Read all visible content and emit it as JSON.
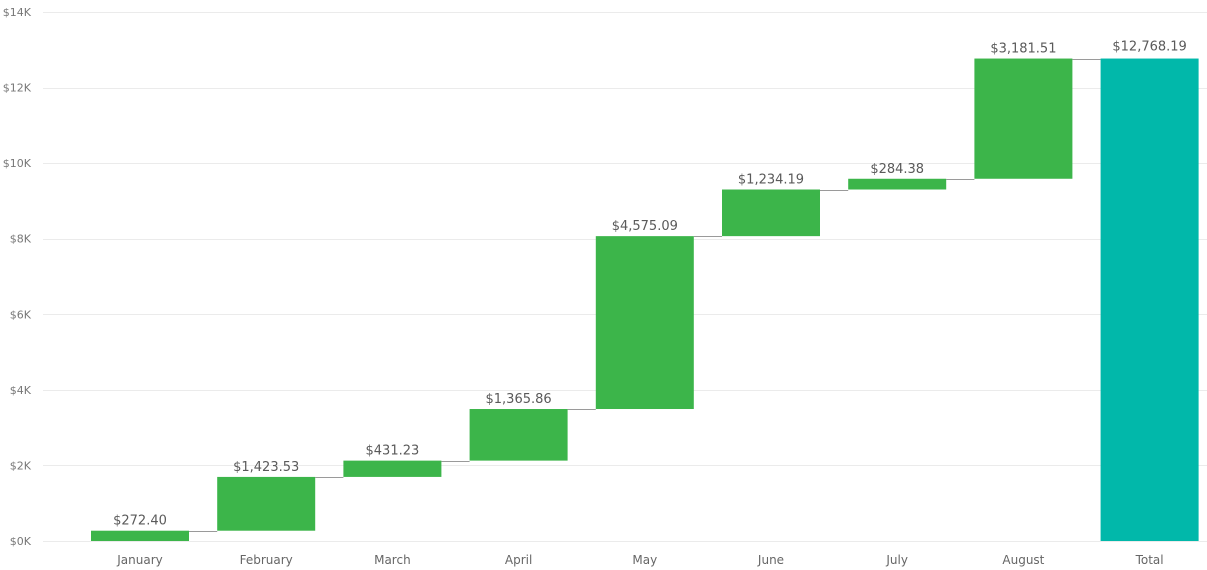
{
  "chart_data": {
    "type": "waterfall",
    "title": "",
    "xlabel": "",
    "ylabel": "",
    "categories": [
      "January",
      "February",
      "March",
      "April",
      "May",
      "June",
      "July",
      "August"
    ],
    "values": [
      272.4,
      1423.53,
      431.23,
      1365.86,
      4575.09,
      1234.19,
      284.38,
      3181.51
    ],
    "value_labels": [
      "$272.40",
      "$1,423.53",
      "$431.23",
      "$1,365.86",
      "$4,575.09",
      "$1,234.19",
      "$284.38",
      "$3,181.51"
    ],
    "total": {
      "label": "Total",
      "value": 12768.19,
      "value_label": "$12,768.19"
    },
    "ylim": [
      0,
      14000
    ],
    "yticks": [
      0,
      2000,
      4000,
      6000,
      8000,
      10000,
      12000,
      14000
    ],
    "ytick_labels": [
      "$0K",
      "$2K",
      "$4K",
      "$6K",
      "$8K",
      "$10K",
      "$12K",
      "$14K"
    ],
    "grid": true,
    "legend": "none",
    "colors": {
      "increase": "#3cb54a",
      "total": "#01b8aa",
      "connector": "#9a9a9a",
      "grid": "#ebebeb",
      "tick_text": "#777777",
      "label_text": "#5a5a5a"
    }
  }
}
